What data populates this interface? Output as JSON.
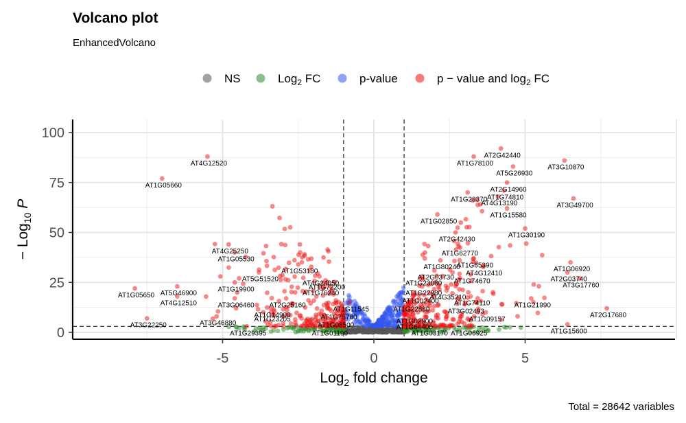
{
  "chart_data": {
    "type": "scatter",
    "title": "Volcano plot",
    "subtitle": "EnhancedVolcano",
    "xlabel": "Log2 fold change",
    "ylabel": "-Log10 P",
    "xlim": [
      -10,
      10
    ],
    "ylim": [
      0,
      100
    ],
    "x_ticks": [
      -5,
      0,
      5
    ],
    "y_ticks": [
      0,
      25,
      50,
      75,
      100
    ],
    "grid": true,
    "legend_position": "top",
    "fc_cutoff": 1,
    "p_cutoff_log10": 3,
    "caption": "Total = 28642 variables",
    "colors": {
      "NS": "#555555",
      "Log2 FC": "#2e8b2e",
      "p-value": "#3355ee",
      "p - value and log2 FC": "#ee1111"
    },
    "legend": [
      {
        "key": "NS",
        "label": "NS",
        "sub": "",
        "suffix": ""
      },
      {
        "key": "Log2 FC",
        "label": "Log",
        "sub": "2",
        "suffix": " FC"
      },
      {
        "key": "p-value",
        "label": "p-value",
        "sub": "",
        "suffix": ""
      },
      {
        "key": "p - value and log2 FC",
        "label": "p − value and log",
        "sub": "2",
        "suffix": " FC"
      }
    ],
    "labeled_points": [
      {
        "gene": "AT4G12520",
        "x": -5.5,
        "y": 88
      },
      {
        "gene": "AT1G05660",
        "x": -7.0,
        "y": 77
      },
      {
        "gene": "AT4G25250",
        "x": -4.8,
        "y": 44
      },
      {
        "gene": "AT1G05530",
        "x": -4.6,
        "y": 40
      },
      {
        "gene": "AT1G53130",
        "x": -2.5,
        "y": 34
      },
      {
        "gene": "AT5G51520",
        "x": -3.8,
        "y": 30
      },
      {
        "gene": "AT4G24050",
        "x": -1.8,
        "y": 28
      },
      {
        "gene": "AT1G72200",
        "x": -1.6,
        "y": 26
      },
      {
        "gene": "AT1G76240",
        "x": -1.8,
        "y": 23
      },
      {
        "gene": "AT1G19900",
        "x": -4.6,
        "y": 25
      },
      {
        "gene": "AT5G46900",
        "x": -6.5,
        "y": 23
      },
      {
        "gene": "AT1G05650",
        "x": -7.9,
        "y": 22
      },
      {
        "gene": "AT4G12510",
        "x": -6.5,
        "y": 18
      },
      {
        "gene": "AT3G06460",
        "x": -4.6,
        "y": 17
      },
      {
        "gene": "AT2G25160",
        "x": -2.9,
        "y": 17
      },
      {
        "gene": "AT1G11545",
        "x": -0.8,
        "y": 15
      },
      {
        "gene": "AT1G14900",
        "x": -3.4,
        "y": 12
      },
      {
        "gene": "AT1G75780",
        "x": -1.2,
        "y": 11
      },
      {
        "gene": "AT1G23205",
        "x": -3.4,
        "y": 10
      },
      {
        "gene": "AT1G08500",
        "x": -1.3,
        "y": 7
      },
      {
        "gene": "AT3G46880",
        "x": -5.2,
        "y": 8
      },
      {
        "gene": "AT3G22250",
        "x": -7.5,
        "y": 7
      },
      {
        "gene": "AT1G29395",
        "x": -4.2,
        "y": 3
      },
      {
        "gene": "AT1G01190",
        "x": -1.5,
        "y": 3
      },
      {
        "gene": "AT2G42440",
        "x": 4.2,
        "y": 92
      },
      {
        "gene": "AT1G78100",
        "x": 3.3,
        "y": 88
      },
      {
        "gene": "AT3G10870",
        "x": 6.3,
        "y": 86
      },
      {
        "gene": "AT5G26930",
        "x": 4.6,
        "y": 83
      },
      {
        "gene": "AT2G14960",
        "x": 4.4,
        "y": 75
      },
      {
        "gene": "AT1G74810",
        "x": 4.3,
        "y": 71
      },
      {
        "gene": "AT1G28370",
        "x": 3.1,
        "y": 70
      },
      {
        "gene": "AT4G13190",
        "x": 4.1,
        "y": 68
      },
      {
        "gene": "AT3G49700",
        "x": 6.6,
        "y": 67
      },
      {
        "gene": "AT1G15580",
        "x": 4.4,
        "y": 62
      },
      {
        "gene": "AT1G02850",
        "x": 2.1,
        "y": 59
      },
      {
        "gene": "AT1G30190",
        "x": 5.0,
        "y": 52
      },
      {
        "gene": "AT2G42430",
        "x": 2.7,
        "y": 50
      },
      {
        "gene": "AT1G62770",
        "x": 2.8,
        "y": 43
      },
      {
        "gene": "AT1G65390",
        "x": 3.3,
        "y": 37
      },
      {
        "gene": "AT1G80240",
        "x": 2.2,
        "y": 36
      },
      {
        "gene": "AT4G12410",
        "x": 3.6,
        "y": 33
      },
      {
        "gene": "AT1G06920",
        "x": 6.5,
        "y": 35
      },
      {
        "gene": "AT2G03730",
        "x": 2.0,
        "y": 31
      },
      {
        "gene": "AT2G03740",
        "x": 6.4,
        "y": 30
      },
      {
        "gene": "AT1G23080",
        "x": 1.6,
        "y": 28
      },
      {
        "gene": "AT1G74670",
        "x": 3.2,
        "y": 29
      },
      {
        "gene": "AT3G17760",
        "x": 6.8,
        "y": 27
      },
      {
        "gene": "AT1G22980",
        "x": 1.6,
        "y": 23
      },
      {
        "gene": "AT4G35210",
        "x": 2.4,
        "y": 21
      },
      {
        "gene": "AT1G21990",
        "x": 5.2,
        "y": 17
      },
      {
        "gene": "AT1G02400",
        "x": 1.5,
        "y": 19
      },
      {
        "gene": "AT1G74110",
        "x": 3.2,
        "y": 18
      },
      {
        "gene": "AT1G22880",
        "x": 1.2,
        "y": 15
      },
      {
        "gene": "AT3G02493",
        "x": 3.0,
        "y": 14
      },
      {
        "gene": "AT2G17680",
        "x": 7.7,
        "y": 12
      },
      {
        "gene": "AT1G09157",
        "x": 3.7,
        "y": 10
      },
      {
        "gene": "AT1G02900",
        "x": 1.3,
        "y": 9
      },
      {
        "gene": "AT1G64400",
        "x": 1.3,
        "y": 6
      },
      {
        "gene": "AT1G03170",
        "x": 1.8,
        "y": 3
      },
      {
        "gene": "AT1G06925",
        "x": 3.1,
        "y": 3
      },
      {
        "gene": "AT1G15600",
        "x": 6.4,
        "y": 4
      }
    ]
  }
}
